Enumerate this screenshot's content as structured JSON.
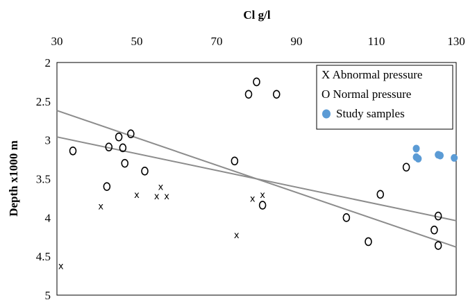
{
  "chart_data": {
    "type": "scatter",
    "xlabel": "Cl g/l",
    "ylabel": "Depth x1000 m",
    "xlim": [
      30,
      130
    ],
    "ylim": [
      2,
      5
    ],
    "y_inverted": true,
    "x_axis_position": "top",
    "x_ticks": [
      "30",
      "50",
      "70",
      "90",
      "110",
      "130"
    ],
    "y_ticks": [
      "2",
      "2.5",
      "3",
      "3.5",
      "4",
      "4.5",
      "5"
    ],
    "grid": false,
    "legend_position": "top-right",
    "series": [
      {
        "name": "Abnormal pressure",
        "legend_label": "X Abnormal pressure",
        "marker": "x",
        "color": "#000000",
        "points": [
          [
            31,
            4.62
          ],
          [
            41,
            3.85
          ],
          [
            50,
            3.7
          ],
          [
            55,
            3.72
          ],
          [
            56,
            3.6
          ],
          [
            57.5,
            3.72
          ],
          [
            75,
            4.22
          ],
          [
            79,
            3.75
          ],
          [
            81.5,
            3.7
          ]
        ]
      },
      {
        "name": "Normal pressure",
        "legend_label": "O Normal pressure",
        "marker": "open-circle",
        "color": "#000000",
        "points": [
          [
            34,
            3.14
          ],
          [
            42.5,
            3.6
          ],
          [
            43,
            3.09
          ],
          [
            45.5,
            2.96
          ],
          [
            46.5,
            3.1
          ],
          [
            47,
            3.3
          ],
          [
            48.5,
            2.92
          ],
          [
            52,
            3.4
          ],
          [
            74.5,
            3.27
          ],
          [
            78,
            2.41
          ],
          [
            80,
            2.25
          ],
          [
            81.5,
            3.84
          ],
          [
            85,
            2.41
          ],
          [
            102.5,
            4.0
          ],
          [
            108,
            4.31
          ],
          [
            111,
            3.7
          ],
          [
            117.5,
            3.35
          ],
          [
            124.5,
            4.16
          ],
          [
            125.5,
            3.98
          ],
          [
            125.5,
            4.36
          ]
        ]
      },
      {
        "name": "Study samples",
        "legend_label": "Study samples",
        "marker": "filled-circle",
        "color": "#5b9bd5",
        "points": [
          [
            120,
            3.11
          ],
          [
            120,
            3.22
          ],
          [
            120.5,
            3.24
          ],
          [
            125.5,
            3.19
          ],
          [
            126,
            3.2
          ],
          [
            129.5,
            3.23
          ]
        ]
      }
    ],
    "trendlines": [
      {
        "from": [
          30,
          2.62
        ],
        "to": [
          130,
          4.38
        ],
        "color": "#8c8c8c"
      },
      {
        "from": [
          30,
          2.96
        ],
        "to": [
          130,
          4.04
        ],
        "color": "#8c8c8c"
      }
    ]
  }
}
